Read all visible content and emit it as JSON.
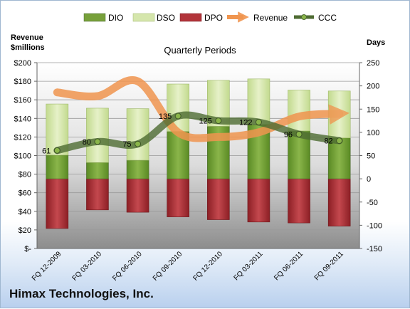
{
  "company": "Himax Technologies, Inc.",
  "chart_data": {
    "type": "bar",
    "title": "Quarterly Periods",
    "ylabel_left": "Revenue\n$millions",
    "ylabel_right": "Days",
    "ylim_left": [
      0,
      200
    ],
    "ylim_right": [
      -150,
      250
    ],
    "left_ticks": [
      "$-",
      "$20",
      "$40",
      "$60",
      "$80",
      "$100",
      "$120",
      "$140",
      "$160",
      "$180",
      "$200"
    ],
    "right_ticks": [
      "-150",
      "-100",
      "-50",
      "0",
      "50",
      "100",
      "150",
      "200",
      "250"
    ],
    "grid": true,
    "legend_position": "top",
    "categories": [
      "FQ 12-2009",
      "FQ 03-2010",
      "FQ 06-2010",
      "FQ 09-2010",
      "FQ 12-2010",
      "FQ 03-2011",
      "FQ 06-2011",
      "FQ 09-2011"
    ],
    "series": [
      {
        "name": "DIO",
        "axis": "right",
        "kind": "stacked-bar",
        "color": "#77a03a",
        "values": [
          51,
          35,
          40,
          102,
          113,
          117,
          103,
          88
        ]
      },
      {
        "name": "DSO",
        "axis": "right",
        "kind": "stacked-bar",
        "color": "#d5e6ac",
        "values": [
          110,
          117,
          111,
          102,
          99,
          98,
          88,
          101
        ]
      },
      {
        "name": "DPO",
        "axis": "right",
        "kind": "negative-bar",
        "color": "#b2343a",
        "values": [
          -107,
          -67,
          -72,
          -82,
          -88,
          -93,
          -95,
          -102
        ]
      },
      {
        "name": "Revenue",
        "axis": "left",
        "kind": "line",
        "color": "#f0954f",
        "values": [
          168,
          164,
          180,
          125,
          120,
          125,
          142,
          145
        ]
      },
      {
        "name": "CCC",
        "axis": "right",
        "kind": "line",
        "color": "#4e6b32",
        "values": [
          61,
          80,
          75,
          135,
          125,
          122,
          96,
          82
        ]
      }
    ],
    "ccc_labels": [
      "61",
      "80",
      "75",
      "135",
      "125",
      "122",
      "96",
      "82"
    ]
  }
}
